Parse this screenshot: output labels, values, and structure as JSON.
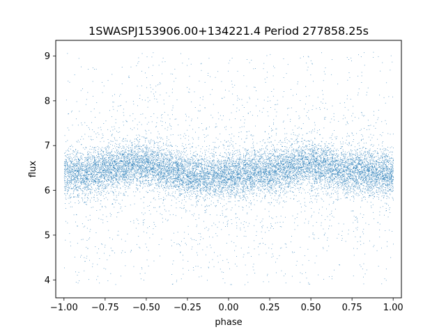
{
  "chart_data": {
    "type": "scatter",
    "title": "1SWASPJ153906.00+134221.4 Period 277858.25s",
    "xlabel": "phase",
    "ylabel": "flux",
    "xlim": [
      -1.05,
      1.05
    ],
    "ylim": [
      3.6,
      9.35
    ],
    "x_ticks": [
      -1.0,
      -0.75,
      -0.5,
      -0.25,
      0.0,
      0.25,
      0.5,
      0.75,
      1.0
    ],
    "x_tick_labels": [
      "−1.00",
      "−0.75",
      "−0.50",
      "−0.25",
      "0.00",
      "0.25",
      "0.50",
      "0.75",
      "1.00"
    ],
    "y_ticks": [
      4,
      5,
      6,
      7,
      8,
      9
    ],
    "y_tick_labels": [
      "4",
      "5",
      "6",
      "7",
      "8",
      "9"
    ],
    "grid": false,
    "legend": "none",
    "marker_color": "#1f77b4",
    "series": [
      {
        "phase_range": [
          -1.0,
          1.0
        ],
        "flux_range": [
          3.9,
          9.1
        ],
        "median_flux_profile": {
          "phase": [
            -1.0,
            -0.85,
            -0.7,
            -0.55,
            -0.45,
            -0.3,
            -0.15,
            0.0,
            0.15,
            0.3,
            0.45,
            0.55,
            0.7,
            0.85,
            1.0
          ],
          "flux": [
            6.35,
            6.4,
            6.5,
            6.6,
            6.55,
            6.4,
            6.3,
            6.35,
            6.4,
            6.45,
            6.6,
            6.55,
            6.45,
            6.4,
            6.35
          ]
        },
        "core_band_halfwidth": 0.45
      }
    ]
  }
}
